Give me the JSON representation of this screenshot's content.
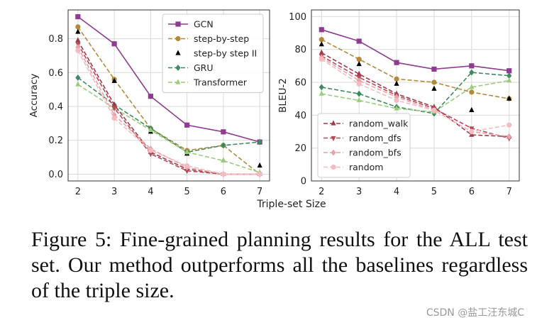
{
  "colors": {
    "GCN": "#8e3b91",
    "step-by-step": "#b5893a",
    "step-by-step II": "#e8c98a",
    "GRU": "#3d8a62",
    "Transformer": "#9ccc7a",
    "random_walk": "#a03a4a",
    "random_dfs": "#b54a58",
    "random_bfs": "#e8a2a8",
    "random": "#f4bcc2"
  },
  "chart_data": [
    {
      "type": "line",
      "x": [
        2,
        3,
        4,
        5,
        6,
        7
      ],
      "ylabel": "Accuracy",
      "xlabel": "",
      "ylim": [
        -0.04,
        0.97
      ],
      "yticks": [
        "0.0",
        "0.2",
        "0.4",
        "0.6",
        "0.8"
      ],
      "ytick_values": [
        0.0,
        0.2,
        0.4,
        0.6,
        0.8
      ],
      "xticks": [
        "2",
        "3",
        "4",
        "5",
        "6",
        "7"
      ],
      "grid": true,
      "legend": "top-right",
      "series": [
        {
          "name": "GCN",
          "marker": "square",
          "dash": "solid",
          "values": [
            0.93,
            0.77,
            0.46,
            0.29,
            0.25,
            0.19
          ]
        },
        {
          "name": "step-by-step",
          "marker": "circle",
          "dash": "dashed",
          "values": [
            0.87,
            0.56,
            0.27,
            0.14,
            0.17,
            0.0
          ]
        },
        {
          "name": "step-by step II",
          "marker": "triangle",
          "dash": "dashed",
          "values": [
            0.84,
            0.55,
            0.25,
            0.12,
            0.08,
            0.05
          ]
        },
        {
          "name": "GRU",
          "marker": "diamond",
          "dash": "dashed",
          "values": [
            0.57,
            0.41,
            0.27,
            0.13,
            0.17,
            0.19
          ]
        },
        {
          "name": "Transformer",
          "marker": "triangle",
          "dash": "dashed",
          "values": [
            0.53,
            0.39,
            0.26,
            0.13,
            0.08,
            0.01
          ]
        },
        {
          "name": "random_walk",
          "marker": "triangle",
          "dash": "dashed",
          "legend": false,
          "values": [
            0.79,
            0.41,
            0.13,
            0.03,
            0.0,
            0.0
          ]
        },
        {
          "name": "random_dfs",
          "marker": "triangle-down",
          "dash": "dashed",
          "legend": false,
          "values": [
            0.77,
            0.39,
            0.12,
            0.02,
            0.0,
            0.0
          ]
        },
        {
          "name": "random_bfs",
          "marker": "diamond",
          "dash": "dashed",
          "legend": false,
          "values": [
            0.75,
            0.35,
            0.15,
            0.04,
            0.0,
            0.0
          ]
        },
        {
          "name": "random",
          "marker": "circle",
          "dash": "dashed",
          "legend": false,
          "values": [
            0.73,
            0.33,
            0.14,
            0.05,
            0.0,
            0.0
          ]
        }
      ]
    },
    {
      "type": "line",
      "x": [
        2,
        3,
        4,
        5,
        6,
        7
      ],
      "ylabel": "BLEU-2",
      "xlabel": "Triple-set Size",
      "ylim": [
        0,
        104
      ],
      "yticks": [
        "0",
        "20",
        "40",
        "60",
        "80",
        "100"
      ],
      "ytick_values": [
        0,
        20,
        40,
        60,
        80,
        100
      ],
      "xticks": [
        "2",
        "3",
        "4",
        "5",
        "6",
        "7"
      ],
      "grid": true,
      "legend": "bottom-left",
      "series": [
        {
          "name": "GCN",
          "marker": "square",
          "dash": "solid",
          "legend": false,
          "values": [
            92,
            85,
            72,
            68,
            70,
            67
          ]
        },
        {
          "name": "step-by-step",
          "marker": "circle",
          "dash": "dashed",
          "legend": false,
          "values": [
            86,
            74,
            62,
            60,
            54,
            50
          ]
        },
        {
          "name": "step-by step II",
          "marker": "triangle",
          "dash": "dashed",
          "legend": false,
          "values": [
            83,
            71,
            59,
            56,
            43,
            50
          ]
        },
        {
          "name": "GRU",
          "marker": "diamond",
          "dash": "dashed",
          "legend": false,
          "values": [
            57,
            53,
            45,
            41,
            66,
            64
          ]
        },
        {
          "name": "Transformer",
          "marker": "triangle",
          "dash": "dashed",
          "legend": false,
          "values": [
            53,
            49,
            44,
            42,
            57,
            61
          ]
        },
        {
          "name": "random_walk",
          "marker": "triangle",
          "dash": "dashed",
          "values": [
            78,
            65,
            53,
            45,
            28,
            27
          ]
        },
        {
          "name": "random_dfs",
          "marker": "triangle-down",
          "dash": "dashed",
          "values": [
            76,
            63,
            52,
            44,
            32,
            26
          ]
        },
        {
          "name": "random_bfs",
          "marker": "diamond",
          "dash": "dashed",
          "values": [
            75,
            61,
            51,
            43,
            30,
            27
          ]
        },
        {
          "name": "random",
          "marker": "circle",
          "dash": "dashed",
          "values": [
            74,
            59,
            49,
            43,
            30,
            34
          ]
        }
      ]
    }
  ],
  "caption": "Figure 5: Fine-grained planning results for the ALL test set. Our method outperforms all the baselines regardless of the triple size.",
  "watermark": "CSDN @盐工汪东城C"
}
